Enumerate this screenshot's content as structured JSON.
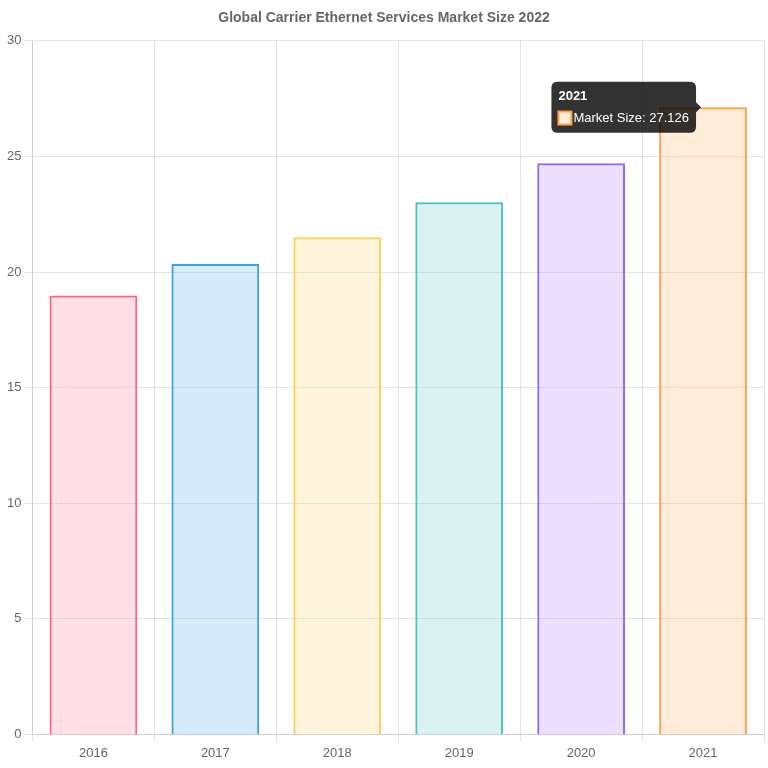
{
  "chart_data": {
    "type": "bar",
    "title": "Global Carrier Ethernet Services Market Size 2022",
    "categories": [
      "2016",
      "2017",
      "2018",
      "2019",
      "2020",
      "2021"
    ],
    "series": [
      {
        "name": "Market Size",
        "values": [
          18.98,
          20.35,
          21.5,
          23.02,
          24.7,
          27.126
        ]
      }
    ],
    "colors": [
      "#ff6384",
      "#36a2eb",
      "#ffcd56",
      "#4bc0c0",
      "#9966ff",
      "#ff9f40"
    ],
    "ylim": [
      0,
      30
    ],
    "yticks": [
      0,
      5,
      10,
      15,
      20,
      25,
      30
    ],
    "grid": true,
    "annotations": [
      {
        "category": "2021",
        "text": "Market Size: 27.126"
      }
    ]
  }
}
